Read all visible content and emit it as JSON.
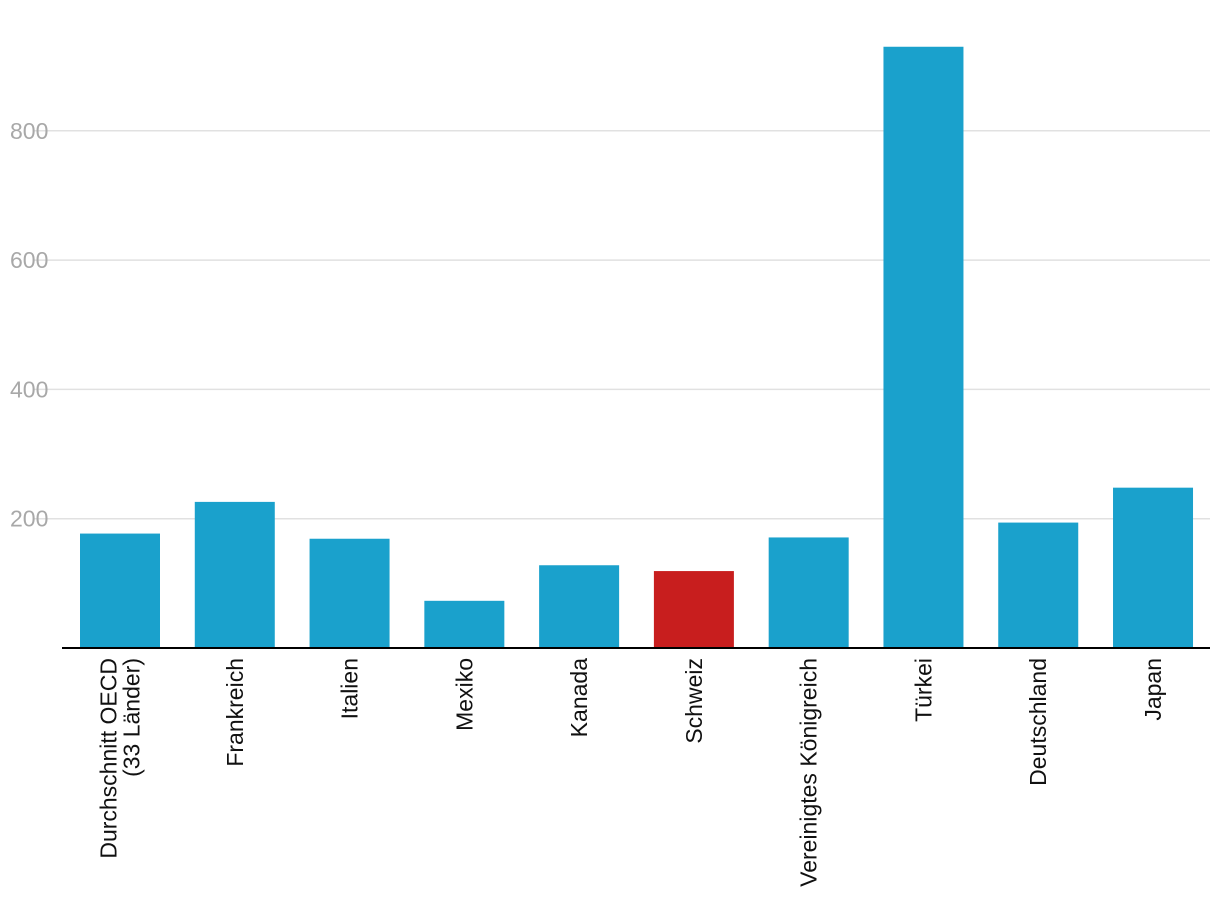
{
  "chart_data": {
    "type": "bar",
    "categories": [
      "Durchschnitt OECD (33 Länder)",
      "Frankreich",
      "Italien",
      "Mexiko",
      "Kanada",
      "Schweiz",
      "Vereinigtes Königreich",
      "Türkei",
      "Deutschland",
      "Japan"
    ],
    "values": [
      177,
      226,
      169,
      73,
      128,
      119,
      171,
      930,
      194,
      248
    ],
    "colors": [
      "#1aa1cc",
      "#1aa1cc",
      "#1aa1cc",
      "#1aa1cc",
      "#1aa1cc",
      "#c81e1e",
      "#1aa1cc",
      "#1aa1cc",
      "#1aa1cc",
      "#1aa1cc"
    ],
    "highlight": "Schweiz",
    "title": "",
    "xlabel": "",
    "ylabel": "",
    "ylim": [
      0,
      960
    ],
    "yticks": [
      200,
      400,
      600,
      800
    ],
    "grid": true,
    "legend": "none"
  }
}
